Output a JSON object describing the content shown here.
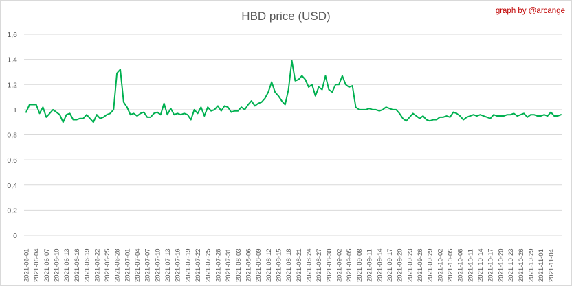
{
  "chart_data": {
    "type": "line",
    "title": "HBD price (USD)",
    "credit": "graph by @arcange",
    "xlabel": "",
    "ylabel": "",
    "ylim": [
      0,
      1.6
    ],
    "yticks": [
      "0",
      "0,2",
      "0,4",
      "0,6",
      "0,8",
      "1",
      "1,2",
      "1,4",
      "1,6"
    ],
    "grid": true,
    "legend": "none",
    "line_color": "#00b050",
    "x_tick_labels": [
      "2021-06-01",
      "2021-06-04",
      "2021-06-07",
      "2021-06-10",
      "2021-06-13",
      "2021-06-16",
      "2021-06-19",
      "2021-06-22",
      "2021-06-25",
      "2021-06-28",
      "2021-07-01",
      "2021-07-04",
      "2021-07-07",
      "2021-07-10",
      "2021-07-13",
      "2021-07-16",
      "2021-07-19",
      "2021-07-22",
      "2021-07-25",
      "2021-07-28",
      "2021-07-31",
      "2021-08-03",
      "2021-08-06",
      "2021-08-09",
      "2021-08-12",
      "2021-08-15",
      "2021-08-18",
      "2021-08-21",
      "2021-08-24",
      "2021-08-27",
      "2021-08-30",
      "2021-09-02",
      "2021-09-05",
      "2021-09-08",
      "2021-09-11",
      "2021-09-14",
      "2021-09-17",
      "2021-09-20",
      "2021-09-23",
      "2021-09-26",
      "2021-09-29",
      "2021-10-02",
      "2021-10-05",
      "2021-10-08",
      "2021-10-11",
      "2021-10-14",
      "2021-10-17",
      "2021-10-20",
      "2021-10-23",
      "2021-10-26",
      "2021-10-29",
      "2021-11-01",
      "2021-11-04"
    ],
    "x_start": "2021-06-01",
    "values": [
      0.98,
      1.04,
      1.04,
      1.04,
      0.97,
      1.02,
      0.94,
      0.97,
      1.0,
      0.98,
      0.96,
      0.9,
      0.96,
      0.97,
      0.92,
      0.92,
      0.93,
      0.93,
      0.96,
      0.93,
      0.9,
      0.96,
      0.93,
      0.94,
      0.96,
      0.97,
      1.0,
      1.29,
      1.32,
      1.06,
      1.02,
      0.96,
      0.97,
      0.95,
      0.97,
      0.98,
      0.94,
      0.94,
      0.97,
      0.98,
      0.96,
      1.05,
      0.96,
      1.01,
      0.96,
      0.97,
      0.96,
      0.97,
      0.96,
      0.92,
      1.0,
      0.97,
      1.02,
      0.95,
      1.02,
      0.99,
      1.0,
      1.03,
      0.99,
      1.03,
      1.02,
      0.98,
      0.99,
      0.99,
      1.02,
      1.0,
      1.04,
      1.07,
      1.03,
      1.05,
      1.06,
      1.09,
      1.14,
      1.22,
      1.14,
      1.11,
      1.07,
      1.04,
      1.16,
      1.39,
      1.23,
      1.24,
      1.27,
      1.24,
      1.18,
      1.2,
      1.11,
      1.18,
      1.16,
      1.27,
      1.16,
      1.14,
      1.2,
      1.2,
      1.27,
      1.2,
      1.18,
      1.19,
      1.02,
      1.0,
      1.0,
      1.0,
      1.01,
      1.0,
      1.0,
      0.99,
      1.0,
      1.02,
      1.01,
      1.0,
      1.0,
      0.97,
      0.93,
      0.91,
      0.94,
      0.97,
      0.95,
      0.93,
      0.95,
      0.92,
      0.91,
      0.92,
      0.92,
      0.94,
      0.94,
      0.95,
      0.94,
      0.98,
      0.97,
      0.95,
      0.92,
      0.94,
      0.95,
      0.96,
      0.95,
      0.96,
      0.95,
      0.94,
      0.93,
      0.96,
      0.95,
      0.95,
      0.95,
      0.96,
      0.96,
      0.97,
      0.95,
      0.96,
      0.97,
      0.94,
      0.96,
      0.96,
      0.95,
      0.95,
      0.96,
      0.95,
      0.98,
      0.95,
      0.95,
      0.96
    ]
  }
}
